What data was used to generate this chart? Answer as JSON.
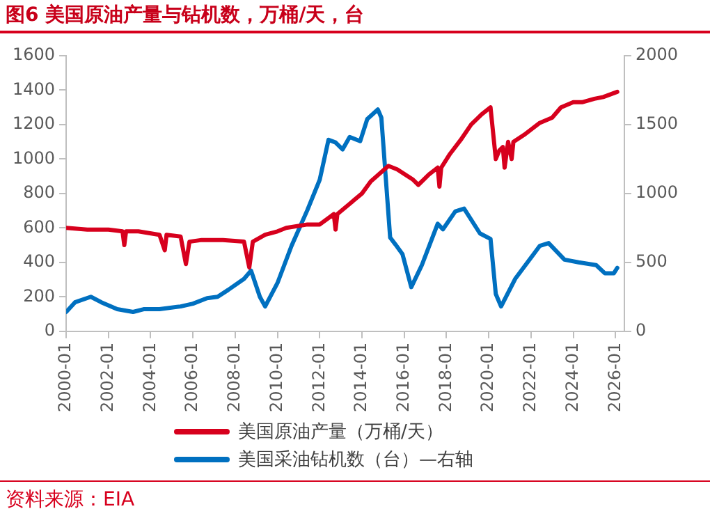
{
  "chart_data": {
    "type": "line",
    "title": "图6  美国原油产量与钻机数，万桶/天，台",
    "annotations": [
      "资料来源：EIA"
    ],
    "xlim": [
      "2000-01",
      "2026-06"
    ],
    "xticks": [
      "2000-01",
      "2002-01",
      "2004-01",
      "2006-01",
      "2008-01",
      "2010-01",
      "2012-01",
      "2014-01",
      "2016-01",
      "2018-01",
      "2020-01",
      "2022-01",
      "2024-01",
      "2026-01"
    ],
    "ylim": [
      0,
      1600
    ],
    "yticks": [
      0,
      200,
      400,
      600,
      800,
      1000,
      1200,
      1400,
      1600
    ],
    "y2lim": [
      0,
      2000
    ],
    "y2ticks": [
      0,
      500,
      1000,
      1500,
      2000
    ],
    "grid": false,
    "legend": "bottom",
    "marker": "none",
    "line_style": "solid",
    "series": [
      {
        "name": "美国原油产量（万桶/天）",
        "color": "#d7001d",
        "x": [
          "2000-01",
          "2001-01",
          "2002-01",
          "2002-09",
          "2002-10",
          "2002-11",
          "2003-06",
          "2004-06",
          "2004-09",
          "2004-10",
          "2005-06",
          "2005-09",
          "2005-11",
          "2006-06",
          "2007-06",
          "2008-06",
          "2008-09",
          "2008-11",
          "2009-06",
          "2010-01",
          "2010-06",
          "2011-06",
          "2012-01",
          "2012-09",
          "2012-10",
          "2012-11",
          "2013-06",
          "2014-01",
          "2014-06",
          "2015-04",
          "2015-09",
          "2016-06",
          "2016-09",
          "2017-03",
          "2017-08",
          "2017-09",
          "2017-10",
          "2018-03",
          "2018-09",
          "2019-03",
          "2019-09",
          "2020-02",
          "2020-05",
          "2020-07",
          "2020-09",
          "2020-10",
          "2020-12",
          "2021-02",
          "2021-03",
          "2021-09",
          "2022-06",
          "2023-01",
          "2023-06",
          "2024-01",
          "2024-06",
          "2025-01",
          "2025-06",
          "2026-02"
        ],
        "values": [
          600,
          590,
          590,
          580,
          500,
          580,
          580,
          560,
          470,
          560,
          550,
          390,
          520,
          530,
          530,
          520,
          370,
          520,
          560,
          580,
          600,
          620,
          620,
          680,
          590,
          680,
          740,
          800,
          870,
          960,
          940,
          880,
          850,
          910,
          950,
          840,
          950,
          1030,
          1110,
          1200,
          1260,
          1300,
          1000,
          1050,
          1070,
          950,
          1100,
          1000,
          1100,
          1140,
          1210,
          1240,
          1300,
          1330,
          1330,
          1350,
          1360,
          1390
        ]
      },
      {
        "name": "美国采油钻机数（台）—右轴",
        "color": "#0070c0",
        "axis": "y2",
        "x": [
          "2000-01",
          "2000-06",
          "2001-03",
          "2001-09",
          "2002-06",
          "2003-03",
          "2003-09",
          "2004-06",
          "2005-06",
          "2006-01",
          "2006-09",
          "2007-03",
          "2007-09",
          "2008-06",
          "2008-10",
          "2009-03",
          "2009-06",
          "2010-01",
          "2010-09",
          "2011-06",
          "2012-01",
          "2012-06",
          "2012-10",
          "2013-02",
          "2013-06",
          "2013-12",
          "2014-04",
          "2014-10",
          "2014-12",
          "2015-05",
          "2015-08",
          "2015-12",
          "2016-05",
          "2016-11",
          "2017-08",
          "2017-11",
          "2018-06",
          "2018-11",
          "2019-08",
          "2020-02",
          "2020-05",
          "2020-08",
          "2021-04",
          "2022-06",
          "2022-11",
          "2023-08",
          "2024-04",
          "2025-02",
          "2025-07",
          "2025-12",
          "2026-02"
        ],
        "values": [
          140,
          210,
          250,
          210,
          160,
          140,
          160,
          160,
          180,
          200,
          240,
          250,
          300,
          380,
          440,
          250,
          180,
          350,
          620,
          880,
          1100,
          1390,
          1370,
          1320,
          1410,
          1380,
          1540,
          1610,
          1550,
          680,
          630,
          560,
          320,
          480,
          780,
          740,
          870,
          890,
          710,
          670,
          270,
          180,
          380,
          620,
          640,
          520,
          500,
          480,
          420,
          420,
          460
        ]
      }
    ]
  }
}
